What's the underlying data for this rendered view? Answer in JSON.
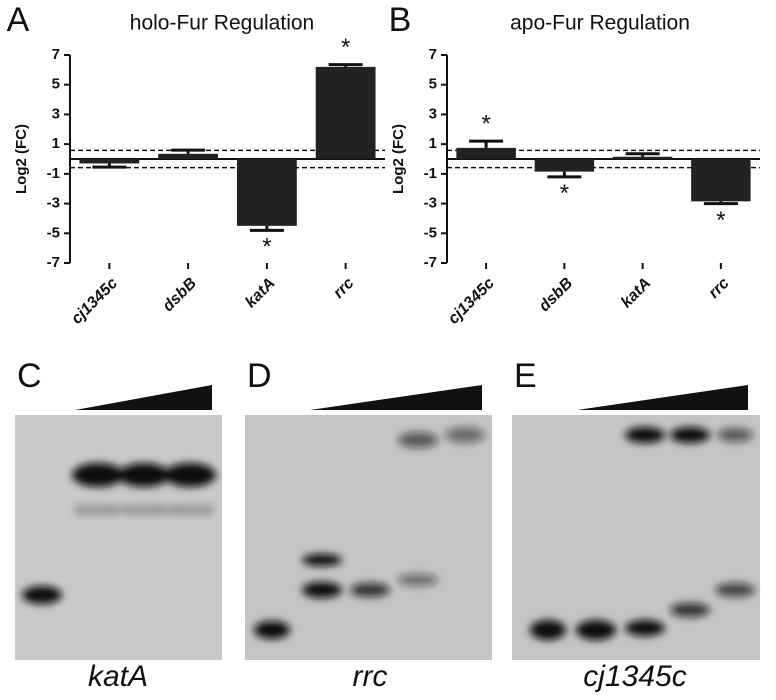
{
  "chart_data": [
    {
      "type": "bar",
      "panel_label": "A",
      "title": "holo-Fur Regulation",
      "y_label": "Log2 (FC)",
      "categories": [
        "cj1345c",
        "dsbB",
        "katA",
        "rrc"
      ],
      "values": [
        -0.3,
        0.35,
        -4.5,
        6.2
      ],
      "errors": [
        0.25,
        0.25,
        0.3,
        0.15
      ],
      "significance": [
        null,
        null,
        "*",
        "*"
      ],
      "color": "#222222",
      "ylim": [
        -7,
        7
      ],
      "yticks": [
        -7,
        -5,
        -3,
        -1,
        1,
        3,
        5,
        7
      ],
      "thresholds": [
        0.58,
        -0.58
      ]
    },
    {
      "type": "bar",
      "panel_label": "B",
      "title": "apo-Fur Regulation",
      "y_label": "Log2 (FC)",
      "categories": [
        "cj1345c",
        "dsbB",
        "katA",
        "rrc"
      ],
      "values": [
        0.75,
        -0.85,
        0.15,
        -2.85
      ],
      "errors": [
        0.45,
        0.35,
        0.2,
        0.15
      ],
      "significance": [
        "*",
        "*",
        null,
        "*"
      ],
      "color": "#222222",
      "ylim": [
        -7,
        7
      ],
      "yticks": [
        -7,
        -5,
        -3,
        -1,
        1,
        3,
        5,
        7
      ],
      "thresholds": [
        0.58,
        -0.58
      ]
    }
  ],
  "gels": [
    {
      "panel_label": "C",
      "label": "katA"
    },
    {
      "panel_label": "D",
      "label": "rrc"
    },
    {
      "panel_label": "E",
      "label": "cj1345c"
    }
  ]
}
